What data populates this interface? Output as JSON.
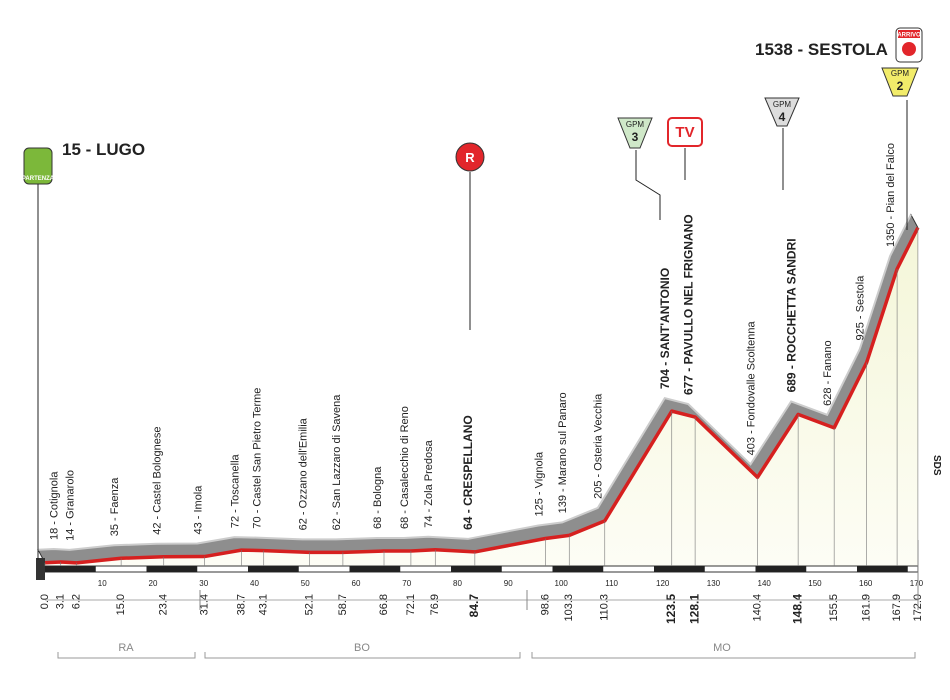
{
  "start": {
    "label": "15 - LUGO",
    "km": "0.0",
    "altitude": 15,
    "badge": "PARTENZA"
  },
  "finish": {
    "label": "1538 - SESTOLA",
    "km": "172.0",
    "altitude": 1538,
    "badge": "ARRIVO"
  },
  "waypoints": [
    {
      "label": "18 - Cotignola",
      "km": "3.1",
      "altitude": 18,
      "major": false
    },
    {
      "label": "14 - Granarolo",
      "km": "6.2",
      "altitude": 14,
      "major": false
    },
    {
      "label": "35 - Faenza",
      "km": "15.0",
      "altitude": 35,
      "major": false
    },
    {
      "label": "42 - Castel Bolognese",
      "km": "23.4",
      "altitude": 42,
      "major": false
    },
    {
      "label": "43 - Imola",
      "km": "31.4",
      "altitude": 43,
      "major": false
    },
    {
      "label": "72 - Toscanella",
      "km": "38.7",
      "altitude": 72,
      "major": false
    },
    {
      "label": "70 - Castel San Pietro Terme",
      "km": "43.1",
      "altitude": 70,
      "major": false
    },
    {
      "label": "62 - Ozzano dell'Emilia",
      "km": "52.1",
      "altitude": 62,
      "major": false
    },
    {
      "label": "62 - San Lazzaro di Savena",
      "km": "58.7",
      "altitude": 62,
      "major": false
    },
    {
      "label": "68 - Bologna",
      "km": "66.8",
      "altitude": 68,
      "major": false
    },
    {
      "label": "68 - Casalecchio di Reno",
      "km": "72.1",
      "altitude": 68,
      "major": false
    },
    {
      "label": "74 - Zola Predosa",
      "km": "76.9",
      "altitude": 74,
      "major": false
    },
    {
      "label": "64 - CRESPELLANO",
      "km": "84.7",
      "altitude": 64,
      "major": true
    },
    {
      "label": "125 - Vignola",
      "km": "98.6",
      "altitude": 125,
      "major": false
    },
    {
      "label": "139 - Marano sul Panaro",
      "km": "103.3",
      "altitude": 139,
      "major": false
    },
    {
      "label": "205 - Osteria Vecchia",
      "km": "110.3",
      "altitude": 205,
      "major": false
    },
    {
      "label": "704 - SANT'ANTONIO",
      "km": "123.5",
      "altitude": 704,
      "major": true
    },
    {
      "label": "677 - PAVULLO NEL FRIGNANO",
      "km": "128.1",
      "altitude": 677,
      "major": true
    },
    {
      "label": "403 - Fondovalle Scoltenna",
      "km": "140.4",
      "altitude": 403,
      "major": false
    },
    {
      "label": "689 - ROCCHETTA SANDRI",
      "km": "148.4",
      "altitude": 689,
      "major": true
    },
    {
      "label": "628 - Fanano",
      "km": "155.5",
      "altitude": 628,
      "major": false
    },
    {
      "label": "925 - Sestola",
      "km": "161.9",
      "altitude": 925,
      "major": false
    },
    {
      "label": "1350 - Pian del Falco",
      "km": "167.9",
      "altitude": 1350,
      "major": false
    }
  ],
  "km_ticks": [
    10,
    20,
    30,
    40,
    50,
    60,
    70,
    80,
    90,
    100,
    110,
    120,
    130,
    140,
    150,
    160,
    170
  ],
  "provinces": [
    "RA",
    "BO",
    "MO"
  ],
  "markers": {
    "gpm_label": "GPM",
    "gpm_3": "3",
    "gpm_4": "4",
    "gpm_2": "2",
    "tv": "TV",
    "r": "R"
  },
  "sds": "SDS"
}
